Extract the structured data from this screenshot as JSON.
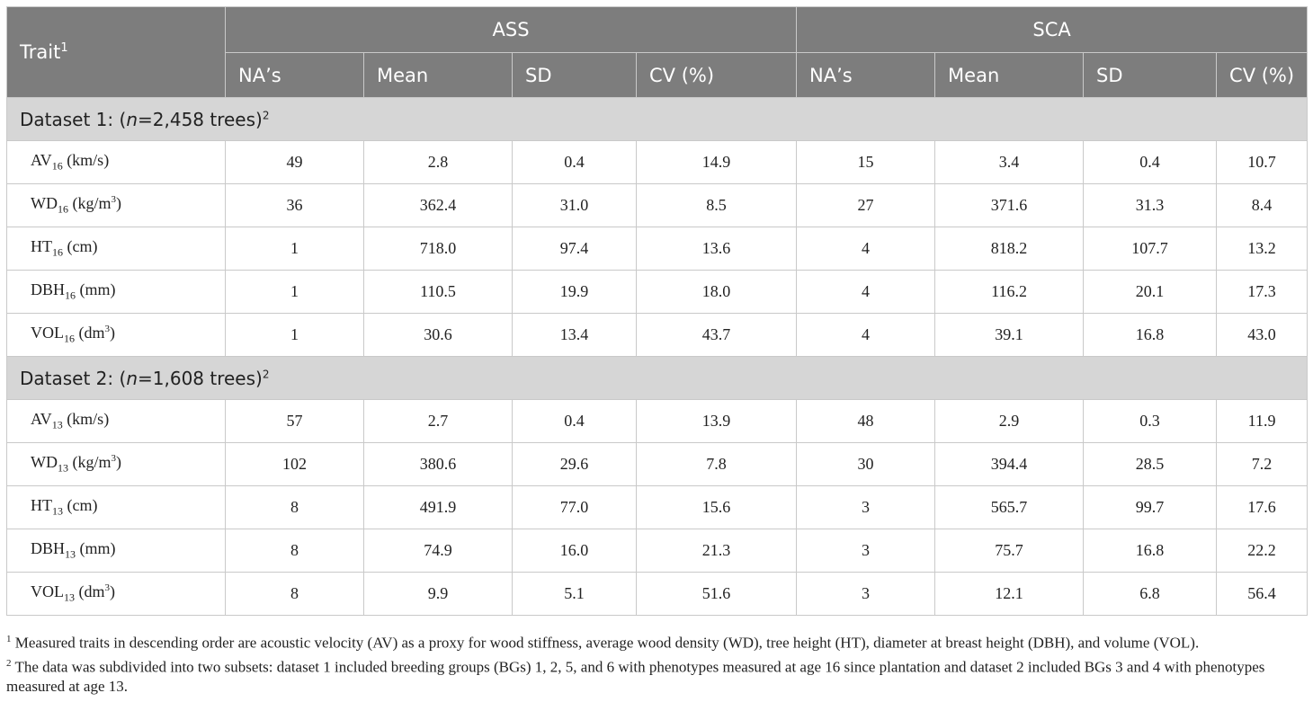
{
  "header": {
    "trait": "Trait",
    "trait_note": "1",
    "group1": "ASS",
    "group2": "SCA",
    "cols": [
      "NA’s",
      "Mean",
      "SD",
      "CV (%)"
    ]
  },
  "sections": [
    {
      "label_pre": "Dataset 1: (",
      "label_n": "n",
      "label_post": "=2,458 trees)",
      "note": "2",
      "rows": [
        {
          "abbr": "AV",
          "sub": "16",
          "unit": " (km/s)",
          "sup": "",
          "unit_end": "",
          "ass": [
            "49",
            "2.8",
            "0.4",
            "14.9"
          ],
          "sca": [
            "15",
            "3.4",
            "0.4",
            "10.7"
          ]
        },
        {
          "abbr": "WD",
          "sub": "16",
          "unit": " (kg/m",
          "sup": "3",
          "unit_end": ")",
          "ass": [
            "36",
            "362.4",
            "31.0",
            "8.5"
          ],
          "sca": [
            "27",
            "371.6",
            "31.3",
            "8.4"
          ]
        },
        {
          "abbr": "HT",
          "sub": "16",
          "unit": " (cm)",
          "sup": "",
          "unit_end": "",
          "ass": [
            "1",
            "718.0",
            "97.4",
            "13.6"
          ],
          "sca": [
            "4",
            "818.2",
            "107.7",
            "13.2"
          ]
        },
        {
          "abbr": "DBH",
          "sub": "16",
          "unit": " (mm)",
          "sup": "",
          "unit_end": "",
          "ass": [
            "1",
            "110.5",
            "19.9",
            "18.0"
          ],
          "sca": [
            "4",
            "116.2",
            "20.1",
            "17.3"
          ]
        },
        {
          "abbr": "VOL",
          "sub": "16",
          "unit": " (dm",
          "sup": "3",
          "unit_end": ")",
          "ass": [
            "1",
            "30.6",
            "13.4",
            "43.7"
          ],
          "sca": [
            "4",
            "39.1",
            "16.8",
            "43.0"
          ]
        }
      ]
    },
    {
      "label_pre": "Dataset 2: (",
      "label_n": "n",
      "label_post": "=1,608 trees)",
      "note": "2",
      "rows": [
        {
          "abbr": "AV",
          "sub": "13",
          "unit": " (km/s)",
          "sup": "",
          "unit_end": "",
          "ass": [
            "57",
            "2.7",
            "0.4",
            "13.9"
          ],
          "sca": [
            "48",
            "2.9",
            "0.3",
            "11.9"
          ]
        },
        {
          "abbr": "WD",
          "sub": "13",
          "unit": " (kg/m",
          "sup": "3",
          "unit_end": ")",
          "ass": [
            "102",
            "380.6",
            "29.6",
            "7.8"
          ],
          "sca": [
            "30",
            "394.4",
            "28.5",
            "7.2"
          ]
        },
        {
          "abbr": "HT",
          "sub": "13",
          "unit": " (cm)",
          "sup": "",
          "unit_end": "",
          "ass": [
            "8",
            "491.9",
            "77.0",
            "15.6"
          ],
          "sca": [
            "3",
            "565.7",
            "99.7",
            "17.6"
          ]
        },
        {
          "abbr": "DBH",
          "sub": "13",
          "unit": " (mm)",
          "sup": "",
          "unit_end": "",
          "ass": [
            "8",
            "74.9",
            "16.0",
            "21.3"
          ],
          "sca": [
            "3",
            "75.7",
            "16.8",
            "22.2"
          ]
        },
        {
          "abbr": "VOL",
          "sub": "13",
          "unit": " (dm",
          "sup": "3",
          "unit_end": ")",
          "ass": [
            "8",
            "9.9",
            "5.1",
            "51.6"
          ],
          "sca": [
            "3",
            "12.1",
            "6.8",
            "56.4"
          ]
        }
      ]
    }
  ],
  "footnotes": [
    {
      "mark": "1",
      "text": " Measured traits in descending order are acoustic velocity (AV) as a proxy for wood stiffness, average wood density (WD), tree height (HT), diameter at breast height (DBH), and volume (VOL)."
    },
    {
      "mark": "2",
      "text": " The data was subdivided into two subsets: dataset 1 included breeding groups (BGs) 1, 2, 5, and 6 with phenotypes measured at age 16 since plantation and dataset 2 included BGs 3 and 4 with phenotypes measured at age 13."
    }
  ]
}
